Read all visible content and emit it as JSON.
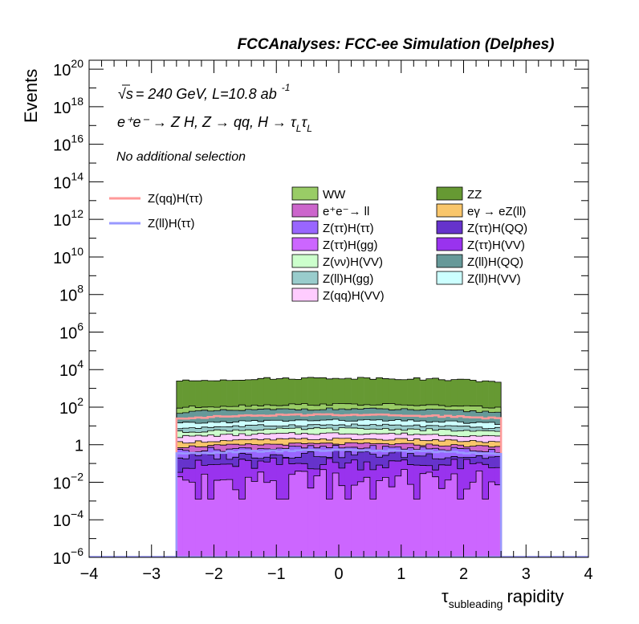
{
  "title": "FCCAnalyses: FCC-ee Simulation (Delphes)",
  "info": {
    "energy_sqrt": "√s",
    "energy_rest": "= 240 GeV, L=10.8 ab",
    "lumi_exp": "-1",
    "process": "e⁺e⁻ → Z H, Z → qq, H → τ",
    "process_sub1": "L",
    "process_tau2": "τ",
    "process_sub2": "L",
    "selection": "No additional selection"
  },
  "colors": {
    "WW": "#99cc66",
    "ZZ": "#669933",
    "ee_ll": "#cc66cc",
    "egamma": "#f9c66b",
    "Ztautau_Htautau": "#9966ff",
    "Ztautau_HQQ": "#6633cc",
    "Ztautau_Hgg": "#cc66ff",
    "Ztautau_HVV": "#9933ee",
    "Znunu_HVV": "#ccffcc",
    "Zll_HQQ": "#669999",
    "Zll_Hgg": "#99cccc",
    "Zll_HVV": "#ccffff",
    "Zqq_HVV": "#ffccff",
    "sig_qq": "#ff9999",
    "sig_ll": "#9999ff"
  },
  "chart_data": {
    "type": "histogram-stacked",
    "title": "FCCAnalyses: FCC-ee Simulation (Delphes)",
    "xlabel": "τ",
    "xlabel_sub": "subleading",
    "xlabel_rest": "rapidity",
    "ylabel": "Events",
    "xlim": [
      -4,
      4
    ],
    "ylim": [
      1e-06,
      3e+20
    ],
    "yscale": "log",
    "bin_width": 0.1,
    "data_range": [
      -2.6,
      2.6
    ],
    "x_ticks": [
      "−4",
      "−3",
      "−2",
      "−1",
      "0",
      "1",
      "2",
      "3",
      "4"
    ],
    "y_ticks": [
      {
        "m": "10",
        "e": "−6"
      },
      {
        "m": "10",
        "e": "−4"
      },
      {
        "m": "10",
        "e": "−2"
      },
      {
        "m": "1",
        "e": ""
      },
      {
        "m": "10",
        "e": "2"
      },
      {
        "m": "10",
        "e": "4"
      },
      {
        "m": "10",
        "e": "6"
      },
      {
        "m": "10",
        "e": "8"
      },
      {
        "m": "10",
        "e": "10"
      },
      {
        "m": "10",
        "e": "12"
      },
      {
        "m": "10",
        "e": "14"
      },
      {
        "m": "10",
        "e": "16"
      },
      {
        "m": "10",
        "e": "18"
      },
      {
        "m": "10",
        "e": "20"
      }
    ],
    "legend_signal": [
      {
        "key": "sig_qq",
        "label": "Z(qq)H(ττ)"
      },
      {
        "key": "sig_ll",
        "label": "Z(ll)H(ττ)"
      }
    ],
    "legend_backgrounds": [
      {
        "key": "WW",
        "label": "WW"
      },
      {
        "key": "ZZ",
        "label": "ZZ"
      },
      {
        "key": "ee_ll",
        "label": "e⁺e⁻→ ll"
      },
      {
        "key": "egamma",
        "label": "eγ → eZ(ll)"
      },
      {
        "key": "Ztautau_Htautau",
        "label": "Z(ττ)H(ττ)"
      },
      {
        "key": "Ztautau_HQQ",
        "label": "Z(ττ)H(QQ)"
      },
      {
        "key": "Ztautau_Hgg",
        "label": "Z(ττ)H(gg)"
      },
      {
        "key": "Ztautau_HVV",
        "label": "Z(ττ)H(VV)"
      },
      {
        "key": "Znunu_HVV",
        "label": "Z(νν)H(VV)"
      },
      {
        "key": "Zll_HQQ",
        "label": "Z(ll)H(QQ)"
      },
      {
        "key": "Zll_Hgg",
        "label": "Z(ll)H(gg)"
      },
      {
        "key": "Zll_HVV",
        "label": "Z(ll)H(VV)"
      },
      {
        "key": "Zqq_HVV",
        "label": "Z(qq)H(VV)"
      }
    ],
    "stack_order": [
      "Ztautau_Hgg",
      "Ztautau_HVV",
      "Ztautau_HQQ",
      "Ztautau_Htautau",
      "ee_ll",
      "egamma",
      "Zqq_HVV",
      "Znunu_HVV",
      "Zll_Hgg",
      "Zll_HVV",
      "Zll_HQQ",
      "WW",
      "ZZ"
    ],
    "stack_totals_log10": {
      "Ztautau_Hgg": -1.8,
      "Ztautau_HVV": -1.0,
      "Ztautau_HQQ": -0.5,
      "Ztautau_Htautau": -0.15,
      "ee_ll": 0.05,
      "egamma": 0.3,
      "Zqq_HVV": 0.6,
      "Znunu_HVV": 0.85,
      "Zll_Hgg": 1.05,
      "Zll_HVV": 1.3,
      "Zll_HQQ": 1.9,
      "WW": 2.15,
      "ZZ": 3.55
    },
    "signal_log10": {
      "sig_qq": 1.6,
      "sig_ll": -0.3
    }
  }
}
